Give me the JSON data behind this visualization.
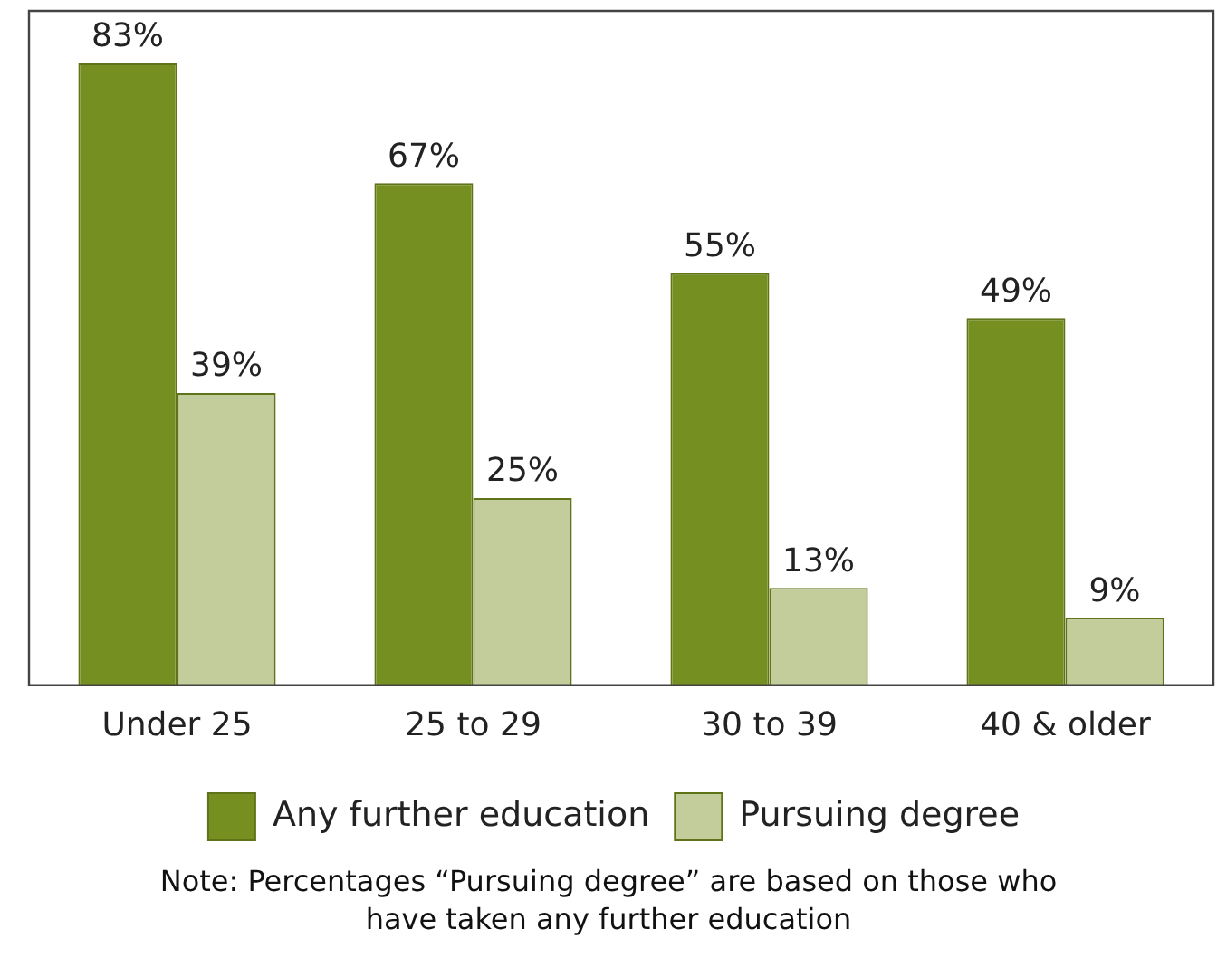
{
  "chart_data": {
    "type": "bar",
    "categories": [
      "Under 25",
      "25 to 29",
      "30 to 39",
      "40 & older"
    ],
    "series": [
      {
        "name": "Any further education",
        "color": "#758f20",
        "values": [
          83,
          67,
          55,
          49
        ],
        "value_labels": [
          "83%",
          "67%",
          "55%",
          "49%"
        ]
      },
      {
        "name": "Pursuing degree",
        "color": "#c3cc9b",
        "values": [
          39,
          25,
          13,
          9
        ],
        "value_labels": [
          "39%",
          "25%",
          "13%",
          "9%"
        ]
      }
    ],
    "legend": "bottom",
    "grid": false,
    "annotations": [
      "Note: Percentages “Pursuing degree” are based on those who have taken any further education"
    ]
  }
}
